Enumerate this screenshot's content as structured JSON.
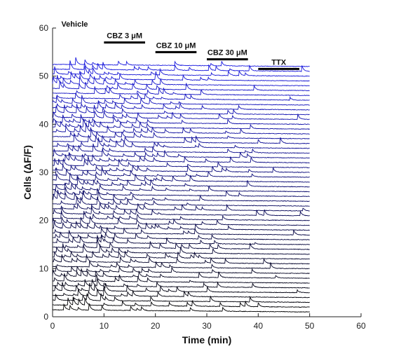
{
  "chart_data": {
    "type": "line",
    "title": "",
    "xlabel": "Time (min)",
    "ylabel": "Cells (ΔF/F)",
    "xlim": [
      0,
      60
    ],
    "ylim": [
      0,
      60
    ],
    "x_ticks": [
      "0",
      "10",
      "20",
      "30",
      "40",
      "50",
      "60"
    ],
    "y_ticks": [
      "0",
      "10",
      "20",
      "30",
      "40",
      "50",
      "60"
    ],
    "trace_count": 52,
    "trace_x_range": [
      0,
      50
    ],
    "trace_color_start": "#000000",
    "trace_color_end": "#1a1adf",
    "grid": false,
    "annotations": [
      {
        "label": "Vehicle",
        "start": null,
        "end": null
      },
      {
        "label": "CBZ 3 μM",
        "start": 10,
        "end": 18
      },
      {
        "label": "CBZ 10 μM",
        "start": 20,
        "end": 28
      },
      {
        "label": "CBZ 30 μM",
        "start": 30,
        "end": 38
      },
      {
        "label": "TTX",
        "start": 40,
        "end": 48
      }
    ]
  }
}
